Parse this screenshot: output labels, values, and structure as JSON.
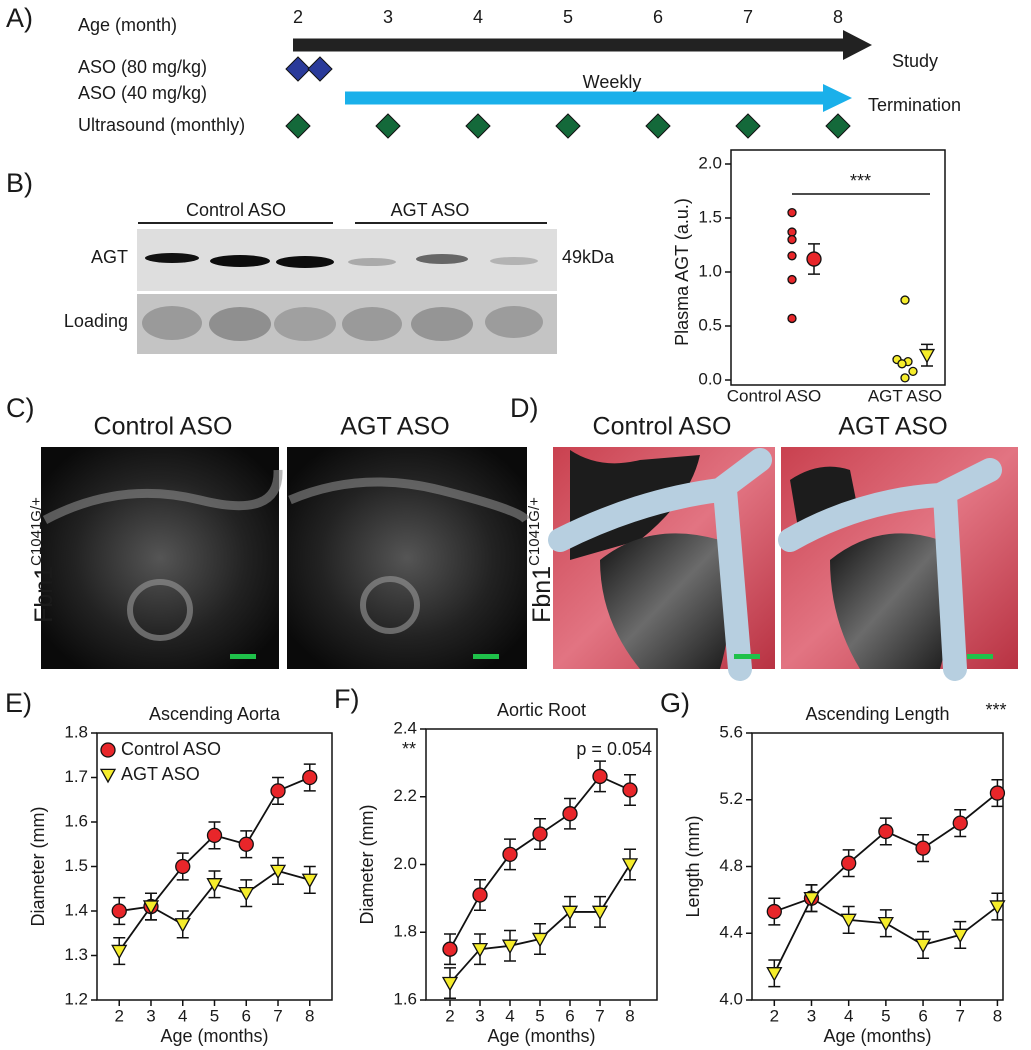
{
  "timeline": {
    "letter": "A)",
    "age_label": "Age (month)",
    "months": [
      2,
      3,
      4,
      5,
      6,
      7,
      8
    ],
    "rows": [
      "ASO (80 mg/kg)",
      "ASO (40 mg/kg)",
      "Ultrasound (monthly)"
    ],
    "arrow_label": "Weekly",
    "end_labels": [
      "Study",
      "Termination"
    ]
  },
  "blot": {
    "letter": "B)",
    "groups": [
      "Control ASO",
      "AGT ASO"
    ],
    "rows": [
      "AGT",
      "Loading"
    ],
    "size": "49kDa"
  },
  "panels": [
    {
      "letter": "C)",
      "titles": [
        "Control ASO",
        "AGT ASO"
      ],
      "genotype": "Fbn1",
      "genotype_sup": "C1041G/+"
    },
    {
      "letter": "D)",
      "titles": [
        "Control ASO",
        "AGT ASO"
      ],
      "genotype": "Fbn1",
      "genotype_sup": "C1041G/+"
    }
  ],
  "chart_data": [
    {
      "type": "dot",
      "ylabel": "Plasma AGT (a.u.)",
      "categories": [
        "Control ASO",
        "AGT ASO"
      ],
      "series": [
        {
          "color": "#e8262a",
          "marker": "circle",
          "points": [
            1.55,
            1.37,
            1.3,
            1.15,
            0.93,
            0.57
          ],
          "mean": 1.12,
          "error": 0.14
        },
        {
          "color": "#f5ec2b",
          "marker": "triangle",
          "points": [
            0.74,
            0.19,
            0.17,
            0.15,
            0.08,
            0.02
          ],
          "mean": 0.23,
          "error": 0.1
        }
      ],
      "annotations": [
        "***"
      ],
      "ylim": [
        0,
        2.0
      ],
      "yticks": [
        {
          "value": 0,
          "label": "0.0"
        },
        0.5,
        {
          "value": 1,
          "label": "1.0"
        },
        1.5,
        {
          "value": 2,
          "label": "2.0"
        }
      ]
    },
    {
      "type": "line",
      "letter": "E)",
      "title": "Ascending Aorta",
      "xlabel": "Age (months)",
      "ylabel": "Diameter (mm)",
      "x": [
        2,
        3,
        4,
        5,
        6,
        7,
        8
      ],
      "xlim": [
        1.3,
        8.7
      ],
      "xticks": [
        2,
        3,
        4,
        5,
        6,
        7,
        8
      ],
      "ylim": [
        1.2,
        1.8
      ],
      "yticks": [
        1.2,
        1.3,
        1.4,
        1.5,
        1.6,
        1.7,
        1.8
      ],
      "series": [
        {
          "name": "Control ASO",
          "color": "#e8262a",
          "marker": "circle",
          "values": [
            1.4,
            1.41,
            1.5,
            1.57,
            1.55,
            1.67,
            1.7
          ],
          "errors": [
            0.03,
            0.03,
            0.03,
            0.03,
            0.03,
            0.03,
            0.03
          ]
        },
        {
          "name": "AGT ASO",
          "color": "#f5ec2b",
          "marker": "triangle",
          "values": [
            1.31,
            1.41,
            1.37,
            1.46,
            1.44,
            1.49,
            1.47
          ],
          "errors": [
            0.03,
            0.03,
            0.03,
            0.03,
            0.03,
            0.03,
            0.03
          ]
        }
      ],
      "annotations": []
    },
    {
      "type": "line",
      "letter": "F)",
      "title": "Aortic Root",
      "xlabel": "Age (months)",
      "ylabel": "Diameter (mm)",
      "x": [
        2,
        3,
        4,
        5,
        6,
        7,
        8
      ],
      "xlim": [
        1.2,
        8.9
      ],
      "xticks": [
        2,
        3,
        4,
        5,
        6,
        7,
        8
      ],
      "ylim": [
        1.6,
        2.4
      ],
      "yticks": [
        1.6,
        1.8,
        {
          "value": 2,
          "label": "2.0"
        },
        2.2,
        2.4
      ],
      "series": [
        {
          "color": "#e8262a",
          "marker": "circle",
          "values": [
            1.75,
            1.91,
            2.03,
            2.09,
            2.15,
            2.26,
            2.22
          ],
          "errors": [
            0.045,
            0.045,
            0.045,
            0.045,
            0.045,
            0.045,
            0.045
          ]
        },
        {
          "color": "#f5ec2b",
          "marker": "triangle",
          "values": [
            1.65,
            1.75,
            1.76,
            1.78,
            1.86,
            1.86,
            2.0
          ],
          "errors": [
            0.045,
            0.045,
            0.045,
            0.045,
            0.045,
            0.045,
            0.045
          ]
        }
      ],
      "annotations": [
        "**",
        "p = 0.054"
      ]
    },
    {
      "type": "line",
      "letter": "G)",
      "title": "Ascending Length",
      "xlabel": "Age (months)",
      "ylabel": "Length (mm)",
      "x": [
        2,
        3,
        4,
        5,
        6,
        7,
        8
      ],
      "xlim": [
        1.4,
        8.15
      ],
      "xticks": [
        2,
        3,
        4,
        5,
        6,
        7,
        8
      ],
      "ylim": [
        4.0,
        5.6
      ],
      "yticks": [
        {
          "value": 4,
          "label": "4.0"
        },
        4.4,
        4.8,
        5.2,
        5.6
      ],
      "series": [
        {
          "color": "#e8262a",
          "marker": "circle",
          "values": [
            4.53,
            4.61,
            4.82,
            5.01,
            4.91,
            5.06,
            5.24
          ],
          "errors": [
            0.08,
            0.08,
            0.08,
            0.08,
            0.08,
            0.08,
            0.08
          ]
        },
        {
          "color": "#f5ec2b",
          "marker": "triangle",
          "values": [
            4.16,
            4.61,
            4.48,
            4.46,
            4.33,
            4.39,
            4.56
          ],
          "errors": [
            0.08,
            0.08,
            0.08,
            0.08,
            0.08,
            0.08,
            0.08
          ]
        }
      ],
      "annotations": [
        "***"
      ]
    }
  ]
}
